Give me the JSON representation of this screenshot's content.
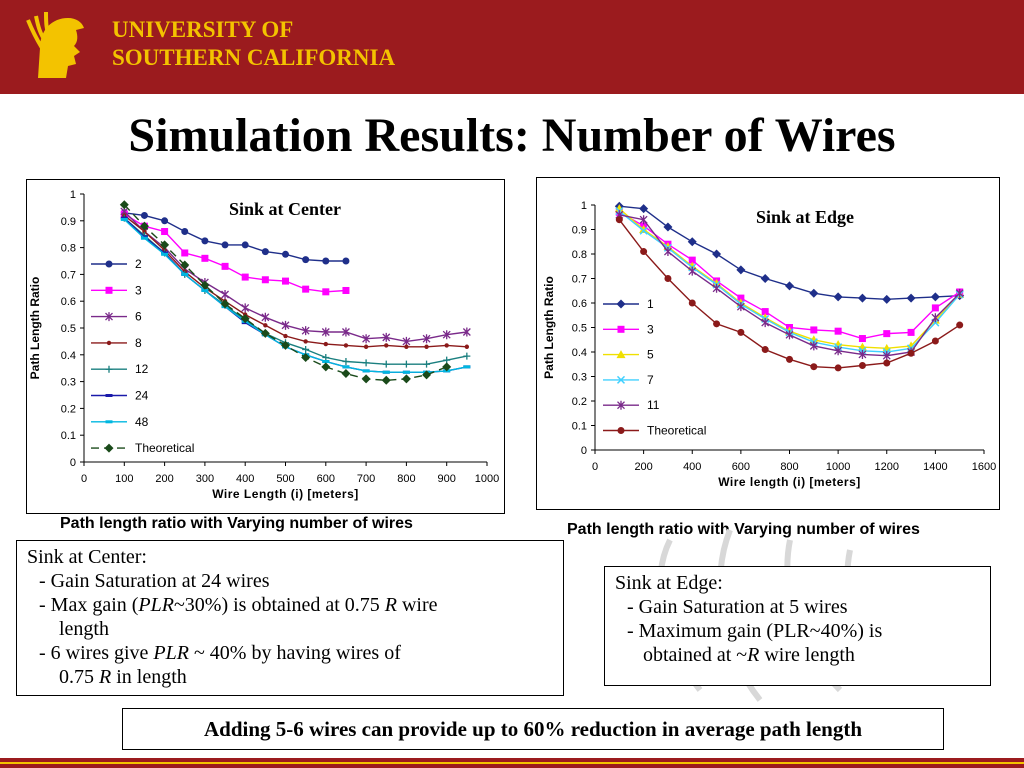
{
  "header": {
    "university_line1": "UNIVERSITY OF",
    "university_line2": "SOUTHERN CALIFORNIA",
    "brand_color": "#9b1b1e",
    "gold_color": "#f3c300",
    "logo_icon": "trojan-head-icon"
  },
  "slide": {
    "title": "Simulation Results: Number of Wires"
  },
  "chart_data": [
    {
      "type": "line",
      "title": "Sink at Center",
      "xlabel": "Wire Length (i) [meters]",
      "ylabel": "Path Length Ratio",
      "xlim": [
        0,
        1000
      ],
      "ylim": [
        0,
        1
      ],
      "xticks": [
        "0",
        "100",
        "200",
        "300",
        "400",
        "500",
        "600",
        "700",
        "800",
        "900",
        "1000"
      ],
      "yticks": [
        "0",
        "0.1",
        "0.2",
        "0.3",
        "0.4",
        "0.5",
        "0.6",
        "0.7",
        "0.8",
        "0.9",
        "1"
      ],
      "legend_position": "left",
      "series": [
        {
          "name": "2",
          "color": "#1f2f8a",
          "marker": "circle",
          "dash": "",
          "points": [
            [
              100,
              0.93
            ],
            [
              150,
              0.92
            ],
            [
              200,
              0.9
            ],
            [
              250,
              0.86
            ],
            [
              300,
              0.825
            ],
            [
              350,
              0.81
            ],
            [
              400,
              0.81
            ],
            [
              450,
              0.785
            ],
            [
              500,
              0.775
            ],
            [
              550,
              0.755
            ],
            [
              600,
              0.75
            ],
            [
              650,
              0.75
            ]
          ]
        },
        {
          "name": "3",
          "color": "#ff00ff",
          "marker": "square",
          "dash": "",
          "points": [
            [
              100,
              0.925
            ],
            [
              150,
              0.88
            ],
            [
              200,
              0.86
            ],
            [
              250,
              0.78
            ],
            [
              300,
              0.76
            ],
            [
              350,
              0.73
            ],
            [
              400,
              0.69
            ],
            [
              450,
              0.68
            ],
            [
              500,
              0.675
            ],
            [
              550,
              0.645
            ],
            [
              600,
              0.635
            ],
            [
              650,
              0.64
            ]
          ]
        },
        {
          "name": "6",
          "color": "#7a2a8a",
          "marker": "star",
          "dash": "",
          "points": [
            [
              100,
              0.935
            ],
            [
              150,
              0.86
            ],
            [
              200,
              0.8
            ],
            [
              250,
              0.72
            ],
            [
              300,
              0.67
            ],
            [
              350,
              0.625
            ],
            [
              400,
              0.575
            ],
            [
              450,
              0.54
            ],
            [
              500,
              0.51
            ],
            [
              550,
              0.49
            ],
            [
              600,
              0.485
            ],
            [
              650,
              0.485
            ],
            [
              700,
              0.46
            ],
            [
              750,
              0.465
            ],
            [
              800,
              0.45
            ],
            [
              850,
              0.46
            ],
            [
              900,
              0.475
            ],
            [
              950,
              0.485
            ]
          ]
        },
        {
          "name": "8",
          "color": "#8b1a1a",
          "marker": "dot",
          "dash": "",
          "points": [
            [
              100,
              0.92
            ],
            [
              150,
              0.86
            ],
            [
              200,
              0.79
            ],
            [
              250,
              0.71
            ],
            [
              300,
              0.65
            ],
            [
              350,
              0.6
            ],
            [
              400,
              0.55
            ],
            [
              450,
              0.51
            ],
            [
              500,
              0.47
            ],
            [
              550,
              0.45
            ],
            [
              600,
              0.44
            ],
            [
              650,
              0.435
            ],
            [
              700,
              0.43
            ],
            [
              750,
              0.435
            ],
            [
              800,
              0.43
            ],
            [
              850,
              0.43
            ],
            [
              900,
              0.435
            ],
            [
              950,
              0.43
            ]
          ]
        },
        {
          "name": "12",
          "color": "#1a7f7f",
          "marker": "plus",
          "dash": "",
          "points": [
            [
              100,
              0.91
            ],
            [
              150,
              0.845
            ],
            [
              200,
              0.78
            ],
            [
              250,
              0.7
            ],
            [
              300,
              0.64
            ],
            [
              350,
              0.585
            ],
            [
              400,
              0.53
            ],
            [
              450,
              0.48
            ],
            [
              500,
              0.445
            ],
            [
              550,
              0.42
            ],
            [
              600,
              0.39
            ],
            [
              650,
              0.375
            ],
            [
              700,
              0.37
            ],
            [
              750,
              0.365
            ],
            [
              800,
              0.365
            ],
            [
              850,
              0.365
            ],
            [
              900,
              0.38
            ],
            [
              950,
              0.395
            ]
          ]
        },
        {
          "name": "24",
          "color": "#1a1aaa",
          "marker": "hline",
          "dash": "",
          "points": [
            [
              100,
              0.91
            ],
            [
              150,
              0.84
            ],
            [
              200,
              0.78
            ],
            [
              250,
              0.7
            ],
            [
              300,
              0.64
            ],
            [
              350,
              0.58
            ],
            [
              400,
              0.52
            ],
            [
              450,
              0.475
            ],
            [
              500,
              0.43
            ],
            [
              550,
              0.4
            ],
            [
              600,
              0.375
            ],
            [
              650,
              0.355
            ],
            [
              700,
              0.34
            ],
            [
              750,
              0.335
            ],
            [
              800,
              0.335
            ],
            [
              850,
              0.335
            ],
            [
              900,
              0.34
            ],
            [
              950,
              0.355
            ]
          ]
        },
        {
          "name": "48",
          "color": "#00b7e0",
          "marker": "hline",
          "dash": "",
          "points": [
            [
              100,
              0.905
            ],
            [
              150,
              0.835
            ],
            [
              200,
              0.775
            ],
            [
              250,
              0.7
            ],
            [
              300,
              0.64
            ],
            [
              350,
              0.58
            ],
            [
              400,
              0.525
            ],
            [
              450,
              0.475
            ],
            [
              500,
              0.43
            ],
            [
              550,
              0.4
            ],
            [
              600,
              0.375
            ],
            [
              650,
              0.355
            ],
            [
              700,
              0.34
            ],
            [
              750,
              0.335
            ],
            [
              800,
              0.335
            ],
            [
              850,
              0.335
            ],
            [
              900,
              0.34
            ],
            [
              950,
              0.355
            ]
          ]
        },
        {
          "name": "Theoretical",
          "color": "#1a4a1a",
          "marker": "diamond",
          "dash": "8,5",
          "points": [
            [
              100,
              0.96
            ],
            [
              150,
              0.88
            ],
            [
              200,
              0.81
            ],
            [
              250,
              0.735
            ],
            [
              300,
              0.66
            ],
            [
              350,
              0.59
            ],
            [
              400,
              0.535
            ],
            [
              450,
              0.48
            ],
            [
              500,
              0.435
            ],
            [
              550,
              0.39
            ],
            [
              600,
              0.355
            ],
            [
              650,
              0.33
            ],
            [
              700,
              0.31
            ],
            [
              750,
              0.305
            ],
            [
              800,
              0.31
            ],
            [
              850,
              0.325
            ],
            [
              900,
              0.355
            ]
          ]
        }
      ]
    },
    {
      "type": "line",
      "title": "Sink at Edge",
      "xlabel": "Wire length (i) [meters]",
      "ylabel": "Path Length Ratio",
      "xlim": [
        0,
        1600
      ],
      "ylim": [
        0,
        1
      ],
      "xticks": [
        "0",
        "200",
        "400",
        "600",
        "800",
        "1000",
        "1200",
        "1400",
        "1600"
      ],
      "yticks": [
        "0",
        "0.1",
        "0.2",
        "0.3",
        "0.4",
        "0.5",
        "0.6",
        "0.7",
        "0.8",
        "0.9",
        "1"
      ],
      "legend_position": "left",
      "series": [
        {
          "name": "1",
          "color": "#1f2f8a",
          "marker": "diamond",
          "dash": "",
          "points": [
            [
              100,
              0.995
            ],
            [
              200,
              0.985
            ],
            [
              300,
              0.91
            ],
            [
              400,
              0.85
            ],
            [
              500,
              0.8
            ],
            [
              600,
              0.735
            ],
            [
              700,
              0.7
            ],
            [
              800,
              0.67
            ],
            [
              900,
              0.64
            ],
            [
              1000,
              0.625
            ],
            [
              1100,
              0.62
            ],
            [
              1200,
              0.615
            ],
            [
              1300,
              0.62
            ],
            [
              1400,
              0.625
            ],
            [
              1500,
              0.63
            ]
          ]
        },
        {
          "name": "3",
          "color": "#ff00ff",
          "marker": "square",
          "dash": "",
          "points": [
            [
              100,
              0.97
            ],
            [
              200,
              0.915
            ],
            [
              300,
              0.84
            ],
            [
              400,
              0.775
            ],
            [
              500,
              0.69
            ],
            [
              600,
              0.62
            ],
            [
              700,
              0.565
            ],
            [
              800,
              0.5
            ],
            [
              900,
              0.49
            ],
            [
              1000,
              0.485
            ],
            [
              1100,
              0.455
            ],
            [
              1200,
              0.475
            ],
            [
              1300,
              0.48
            ],
            [
              1400,
              0.58
            ],
            [
              1500,
              0.645
            ]
          ]
        },
        {
          "name": "5",
          "color": "#f0e000",
          "marker": "triangle",
          "dash": "",
          "points": [
            [
              100,
              0.985
            ],
            [
              200,
              0.9
            ],
            [
              300,
              0.83
            ],
            [
              400,
              0.75
            ],
            [
              500,
              0.68
            ],
            [
              600,
              0.6
            ],
            [
              700,
              0.54
            ],
            [
              800,
              0.485
            ],
            [
              900,
              0.45
            ],
            [
              1000,
              0.43
            ],
            [
              1100,
              0.42
            ],
            [
              1200,
              0.415
            ],
            [
              1300,
              0.425
            ],
            [
              1400,
              0.53
            ],
            [
              1500,
              0.635
            ]
          ]
        },
        {
          "name": "7",
          "color": "#40d0ff",
          "marker": "x",
          "dash": "",
          "points": [
            [
              100,
              0.975
            ],
            [
              200,
              0.895
            ],
            [
              300,
              0.825
            ],
            [
              400,
              0.745
            ],
            [
              500,
              0.675
            ],
            [
              600,
              0.595
            ],
            [
              700,
              0.535
            ],
            [
              800,
              0.48
            ],
            [
              900,
              0.44
            ],
            [
              1000,
              0.42
            ],
            [
              1100,
              0.405
            ],
            [
              1200,
              0.4
            ],
            [
              1300,
              0.415
            ],
            [
              1400,
              0.52
            ],
            [
              1500,
              0.635
            ]
          ]
        },
        {
          "name": "11",
          "color": "#7a2a8a",
          "marker": "star",
          "dash": "",
          "points": [
            [
              100,
              0.96
            ],
            [
              200,
              0.94
            ],
            [
              300,
              0.81
            ],
            [
              400,
              0.73
            ],
            [
              500,
              0.66
            ],
            [
              600,
              0.585
            ],
            [
              700,
              0.52
            ],
            [
              800,
              0.47
            ],
            [
              900,
              0.425
            ],
            [
              1000,
              0.405
            ],
            [
              1100,
              0.39
            ],
            [
              1200,
              0.385
            ],
            [
              1300,
              0.4
            ],
            [
              1400,
              0.54
            ],
            [
              1500,
              0.64
            ]
          ]
        },
        {
          "name": "Theoretical",
          "color": "#8b1a1a",
          "marker": "circle",
          "dash": "",
          "points": [
            [
              100,
              0.94
            ],
            [
              200,
              0.81
            ],
            [
              300,
              0.7
            ],
            [
              400,
              0.6
            ],
            [
              500,
              0.515
            ],
            [
              600,
              0.48
            ],
            [
              700,
              0.41
            ],
            [
              800,
              0.37
            ],
            [
              900,
              0.34
            ],
            [
              1000,
              0.335
            ],
            [
              1100,
              0.345
            ],
            [
              1200,
              0.355
            ],
            [
              1300,
              0.395
            ],
            [
              1400,
              0.445
            ],
            [
              1500,
              0.51
            ]
          ]
        }
      ]
    }
  ],
  "captions": {
    "left": "Path length ratio with Varying number of wires",
    "right": "Path length ratio with Varying number of wires"
  },
  "notes": {
    "center": {
      "line1": "Sink at Center:",
      "line2": "- Gain Saturation at 24 wires",
      "line3a": "- Max gain (",
      "line3b": "PLR",
      "line3c": "~30%) is obtained at 0.75 ",
      "line3d": "R",
      "line3e": " wire",
      "line4": "length",
      "line5a": "- 6 wires give ",
      "line5b": "PLR",
      "line5c": " ~ 40% by having wires of",
      "line6a": "0.75 ",
      "line6b": "R",
      "line6c": " in length"
    },
    "edge": {
      "line1": "Sink at Edge:",
      "line2": "- Gain Saturation at 5 wires",
      "line3": "- Maximum gain (PLR~40%) is",
      "line4a": "obtained at ~",
      "line4b": "R",
      "line4c": " wire length"
    }
  },
  "conclusion": "Adding 5-6 wires can provide up to 60% reduction in average path length"
}
